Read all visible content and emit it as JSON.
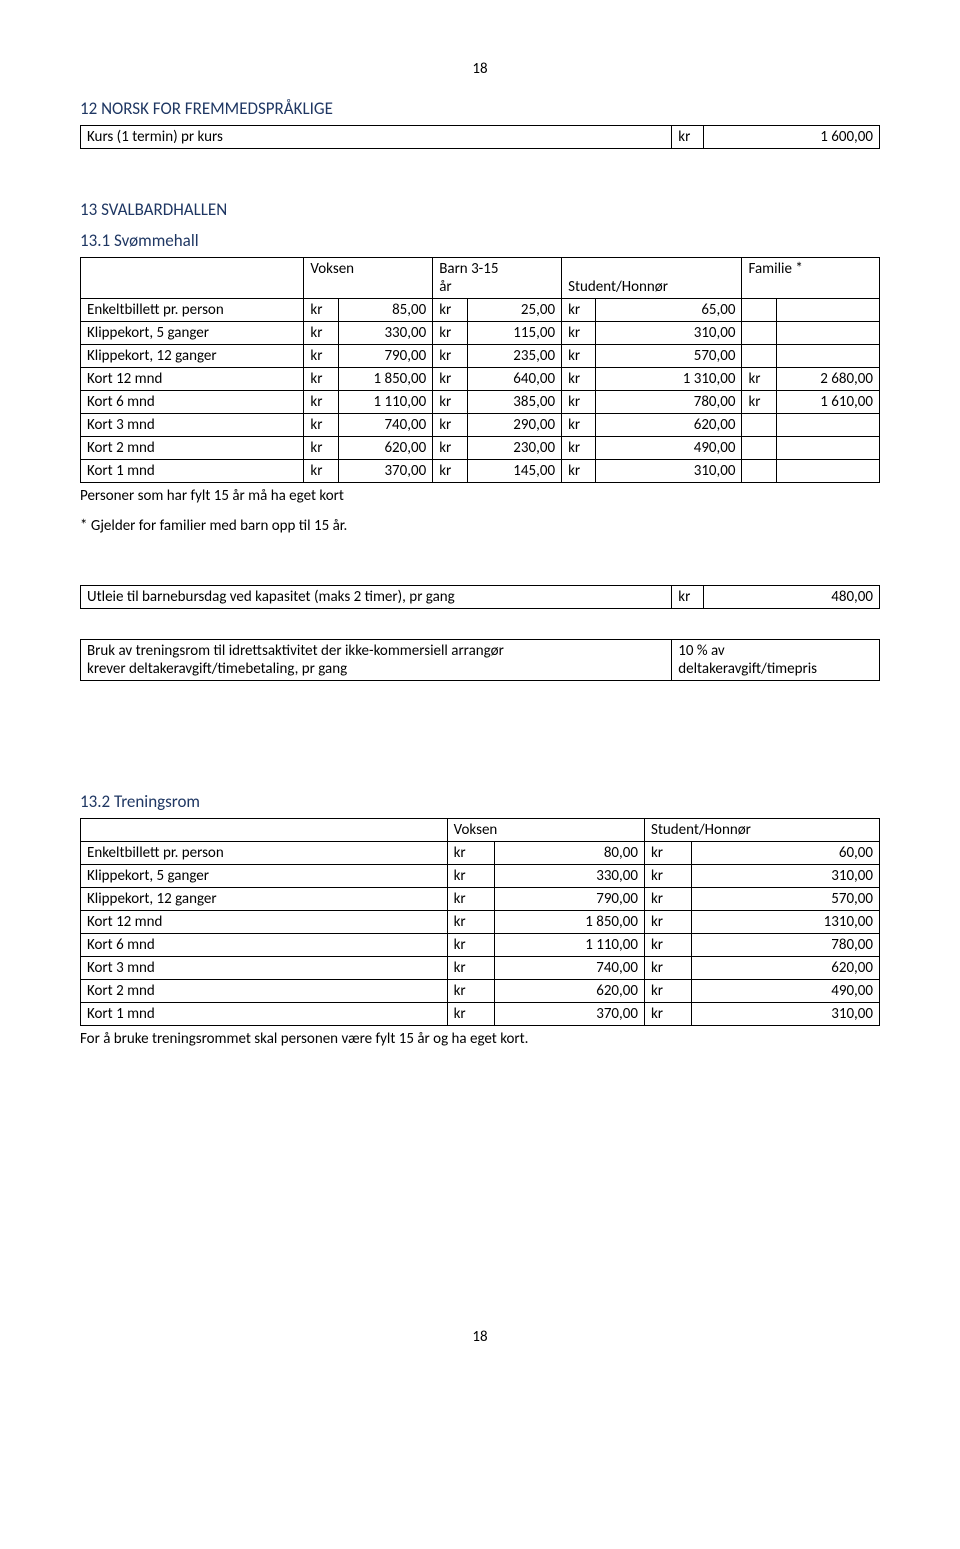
{
  "page_number_top": "18",
  "page_number_bottom": "18",
  "section12": {
    "heading": "12 NORSK FOR FREMMEDSPRÅKLIGE",
    "row_label": "Kurs (1 termin) pr kurs",
    "row_cur": "kr",
    "row_val": "1 600,00"
  },
  "section13": {
    "heading": "13 SVALBARDHALLEN"
  },
  "sub131": {
    "heading": "13.1 Svømmehall",
    "col_voksen": "Voksen",
    "col_barn_line1": "Barn 3-15",
    "col_barn_line2": "år",
    "col_student": "Student/Honnør",
    "col_familie": "Familie *",
    "rows": [
      {
        "label": "Enkeltbillett pr. person",
        "c1": "kr",
        "v1": "85,00",
        "c2": "kr",
        "v2": "25,00",
        "c3": "kr",
        "v3": "65,00",
        "c4": "",
        "v4": ""
      },
      {
        "label": "Klippekort, 5 ganger",
        "c1": "kr",
        "v1": "330,00",
        "c2": "kr",
        "v2": "115,00",
        "c3": "kr",
        "v3": "310,00",
        "c4": "",
        "v4": ""
      },
      {
        "label": "Klippekort, 12 ganger",
        "c1": "kr",
        "v1": "790,00",
        "c2": "kr",
        "v2": "235,00",
        "c3": "kr",
        "v3": "570,00",
        "c4": "",
        "v4": ""
      },
      {
        "label": "Kort 12 mnd",
        "c1": "kr",
        "v1": "1 850,00",
        "c2": "kr",
        "v2": "640,00",
        "c3": "kr",
        "v3": "1 310,00",
        "c4": "kr",
        "v4": "2 680,00"
      },
      {
        "label": "Kort 6 mnd",
        "c1": "kr",
        "v1": "1 110,00",
        "c2": "kr",
        "v2": "385,00",
        "c3": "kr",
        "v3": "780,00",
        "c4": "kr",
        "v4": "1 610,00"
      },
      {
        "label": "Kort 3 mnd",
        "c1": "kr",
        "v1": "740,00",
        "c2": "kr",
        "v2": "290,00",
        "c3": "kr",
        "v3": "620,00",
        "c4": "",
        "v4": ""
      },
      {
        "label": "Kort 2 mnd",
        "c1": "kr",
        "v1": "620,00",
        "c2": "kr",
        "v2": "230,00",
        "c3": "kr",
        "v3": "490,00",
        "c4": "",
        "v4": ""
      },
      {
        "label": "Kort 1 mnd",
        "c1": "kr",
        "v1": "370,00",
        "c2": "kr",
        "v2": "145,00",
        "c3": "kr",
        "v3": "310,00",
        "c4": "",
        "v4": ""
      }
    ],
    "note1": "Personer som har fylt 15 år må ha eget kort",
    "note2": "* Gjelder for familier med barn opp til 15 år."
  },
  "utleie": {
    "label": "Utleie til barnebursdag ved kapasitet (maks 2 timer), pr gang",
    "cur": "kr",
    "val": "480,00"
  },
  "bruk": {
    "label_line1": "Bruk av treningsrom til idrettsaktivitet der ikke-kommersiell arrangør",
    "label_line2": "krever deltakeravgift/timebetaling, pr gang",
    "val_line1": "10 % av",
    "val_line2": "deltakeravgift/timepris"
  },
  "sub132": {
    "heading": "13.2 Treningsrom",
    "col_voksen": "Voksen",
    "col_student": "Student/Honnør",
    "rows": [
      {
        "label": "Enkeltbillett pr. person",
        "c1": "kr",
        "v1": "80,00",
        "c2": "kr",
        "v2": "60,00"
      },
      {
        "label": "Klippekort, 5 ganger",
        "c1": "kr",
        "v1": "330,00",
        "c2": "kr",
        "v2": "310,00"
      },
      {
        "label": "Klippekort, 12 ganger",
        "c1": "kr",
        "v1": "790,00",
        "c2": "kr",
        "v2": "570,00"
      },
      {
        "label": "Kort 12 mnd",
        "c1": "kr",
        "v1": "1 850,00",
        "c2": "kr",
        "v2": "1310,00"
      },
      {
        "label": "Kort 6 mnd",
        "c1": "kr",
        "v1": "1 110,00",
        "c2": "kr",
        "v2": "780,00"
      },
      {
        "label": "Kort 3 mnd",
        "c1": "kr",
        "v1": "740,00",
        "c2": "kr",
        "v2": "620,00"
      },
      {
        "label": "Kort 2 mnd",
        "c1": "kr",
        "v1": "620,00",
        "c2": "kr",
        "v2": "490,00"
      },
      {
        "label": "Kort 1 mnd",
        "c1": "kr",
        "v1": "370,00",
        "c2": "kr",
        "v2": "310,00"
      }
    ],
    "note": "For å bruke treningsrommet skal personen være fylt 15 år og ha eget kort."
  }
}
